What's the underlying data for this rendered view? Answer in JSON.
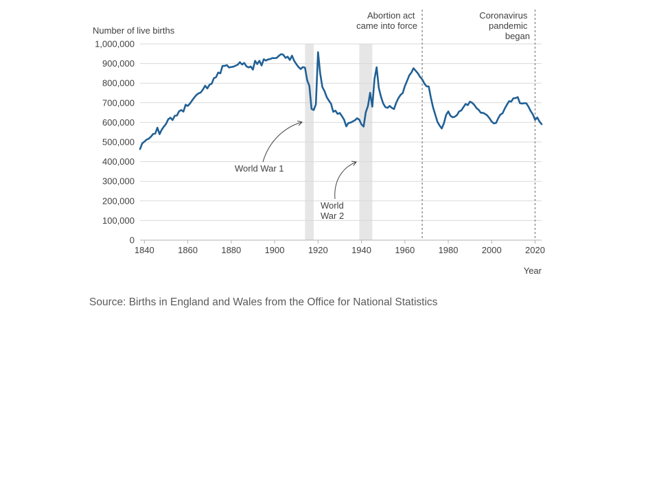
{
  "source": "Source: Births in England and Wales from the Office for National Statistics",
  "chart_data": {
    "type": "line",
    "title": "",
    "ylabel": "Number of live births",
    "xlabel": "Year",
    "xlim": [
      1838,
      2023
    ],
    "ylim": [
      0,
      1000000
    ],
    "x_ticks": [
      1840,
      1860,
      1880,
      1900,
      1920,
      1940,
      1960,
      1980,
      2000,
      2020
    ],
    "x_tick_labels": [
      "1840",
      "1860",
      "1880",
      "1900",
      "1920",
      "1940",
      "1960",
      "1980",
      "2000",
      "2020"
    ],
    "y_ticks": [
      0,
      100000,
      200000,
      300000,
      400000,
      500000,
      600000,
      700000,
      800000,
      900000,
      1000000
    ],
    "y_tick_labels": [
      "0",
      "100,000",
      "200,000",
      "300,000",
      "400,000",
      "500,000",
      "600,000",
      "700,000",
      "800,000",
      "900,000",
      "1,000,000"
    ],
    "grid": "horizontal",
    "line_color": "#206095",
    "band_color": "#e6e6e6",
    "event_line_color": "#999999",
    "shaded_periods": [
      {
        "label": "World War 1",
        "start": 1914,
        "end": 1918
      },
      {
        "label": "World War 2",
        "start": 1939,
        "end": 1945
      }
    ],
    "event_lines": [
      {
        "label": [
          "Abortion act",
          "came into force"
        ],
        "x": 1968
      },
      {
        "label": [
          "Coronavirus",
          "pandemic",
          "began"
        ],
        "x": 2020
      }
    ],
    "series": [
      {
        "x": [
          1838,
          1839,
          1840,
          1841,
          1842,
          1843,
          1844,
          1845,
          1846,
          1847,
          1848,
          1849,
          1850,
          1851,
          1852,
          1853,
          1854,
          1855,
          1856,
          1857,
          1858,
          1859,
          1860,
          1861,
          1862,
          1863,
          1864,
          1865,
          1866,
          1867,
          1868,
          1869,
          1870,
          1871,
          1872,
          1873,
          1874,
          1875,
          1876,
          1877,
          1878,
          1879,
          1880,
          1881,
          1882,
          1883,
          1884,
          1885,
          1886,
          1887,
          1888,
          1889,
          1890,
          1891,
          1892,
          1893,
          1894,
          1895,
          1896,
          1897,
          1898,
          1899,
          1900,
          1901,
          1902,
          1903,
          1904,
          1905,
          1906,
          1907,
          1908,
          1909,
          1910,
          1911,
          1912,
          1913,
          1914,
          1915,
          1916,
          1917,
          1918,
          1919,
          1920,
          1921,
          1922,
          1923,
          1924,
          1925,
          1926,
          1927,
          1928,
          1929,
          1930,
          1931,
          1932,
          1933,
          1934,
          1935,
          1936,
          1937,
          1938,
          1939,
          1940,
          1941,
          1942,
          1943,
          1944,
          1945,
          1946,
          1947,
          1948,
          1949,
          1950,
          1951,
          1952,
          1953,
          1954,
          1955,
          1956,
          1957,
          1958,
          1959,
          1960,
          1961,
          1962,
          1963,
          1964,
          1965,
          1966,
          1967,
          1968,
          1969,
          1970,
          1971,
          1972,
          1973,
          1974,
          1975,
          1976,
          1977,
          1978,
          1979,
          1980,
          1981,
          1982,
          1983,
          1984,
          1985,
          1986,
          1987,
          1988,
          1989,
          1990,
          1991,
          1992,
          1993,
          1994,
          1995,
          1996,
          1997,
          1998,
          1999,
          2000,
          2001,
          2002,
          2003,
          2004,
          2005,
          2006,
          2007,
          2008,
          2009,
          2010,
          2011,
          2012,
          2013,
          2014,
          2015,
          2016,
          2017,
          2018,
          2019,
          2020,
          2021,
          2022,
          2023
        ],
        "values": [
          464000,
          493000,
          502000,
          512000,
          517000,
          527000,
          541000,
          543000,
          573000,
          540000,
          563000,
          579000,
          593000,
          616000,
          624000,
          612000,
          634000,
          635000,
          657000,
          663000,
          655000,
          690000,
          684000,
          696000,
          712000,
          727000,
          740000,
          748000,
          753000,
          768000,
          787000,
          773000,
          792000,
          797000,
          825000,
          830000,
          854000,
          850000,
          888000,
          888000,
          892000,
          880000,
          882000,
          884000,
          889000,
          894000,
          907000,
          895000,
          903000,
          886000,
          880000,
          885000,
          869000,
          914000,
          897000,
          914000,
          890000,
          922000,
          915000,
          921000,
          923000,
          928000,
          927000,
          929000,
          940000,
          948000,
          945000,
          929000,
          935000,
          918000,
          940000,
          914000,
          897000,
          882000,
          872000,
          882000,
          879000,
          815000,
          786000,
          669000,
          663000,
          692000,
          958000,
          849000,
          780000,
          759000,
          729000,
          711000,
          695000,
          654000,
          660000,
          643000,
          648000,
          632000,
          614000,
          580000,
          597000,
          599000,
          605000,
          611000,
          621000,
          614000,
          590000,
          579000,
          652000,
          684000,
          751000,
          680000,
          821000,
          881000,
          775000,
          731000,
          697000,
          678000,
          674000,
          684000,
          674000,
          668000,
          700000,
          723000,
          740000,
          749000,
          785000,
          811000,
          839000,
          854000,
          876000,
          863000,
          850000,
          832000,
          819000,
          798000,
          784000,
          783000,
          725000,
          676000,
          640000,
          603000,
          584000,
          569000,
          596000,
          638000,
          656000,
          634000,
          626000,
          629000,
          637000,
          656000,
          661000,
          678000,
          694000,
          688000,
          706000,
          700000,
          689000,
          673000,
          664000,
          649000,
          649000,
          643000,
          635000,
          621000,
          604000,
          595000,
          597000,
          621000,
          640000,
          646000,
          670000,
          690000,
          708000,
          706000,
          723000,
          724000,
          729000,
          698000,
          696000,
          698000,
          697000,
          679000,
          657000,
          640000,
          613000,
          625000,
          605000,
          591000
        ]
      }
    ]
  }
}
